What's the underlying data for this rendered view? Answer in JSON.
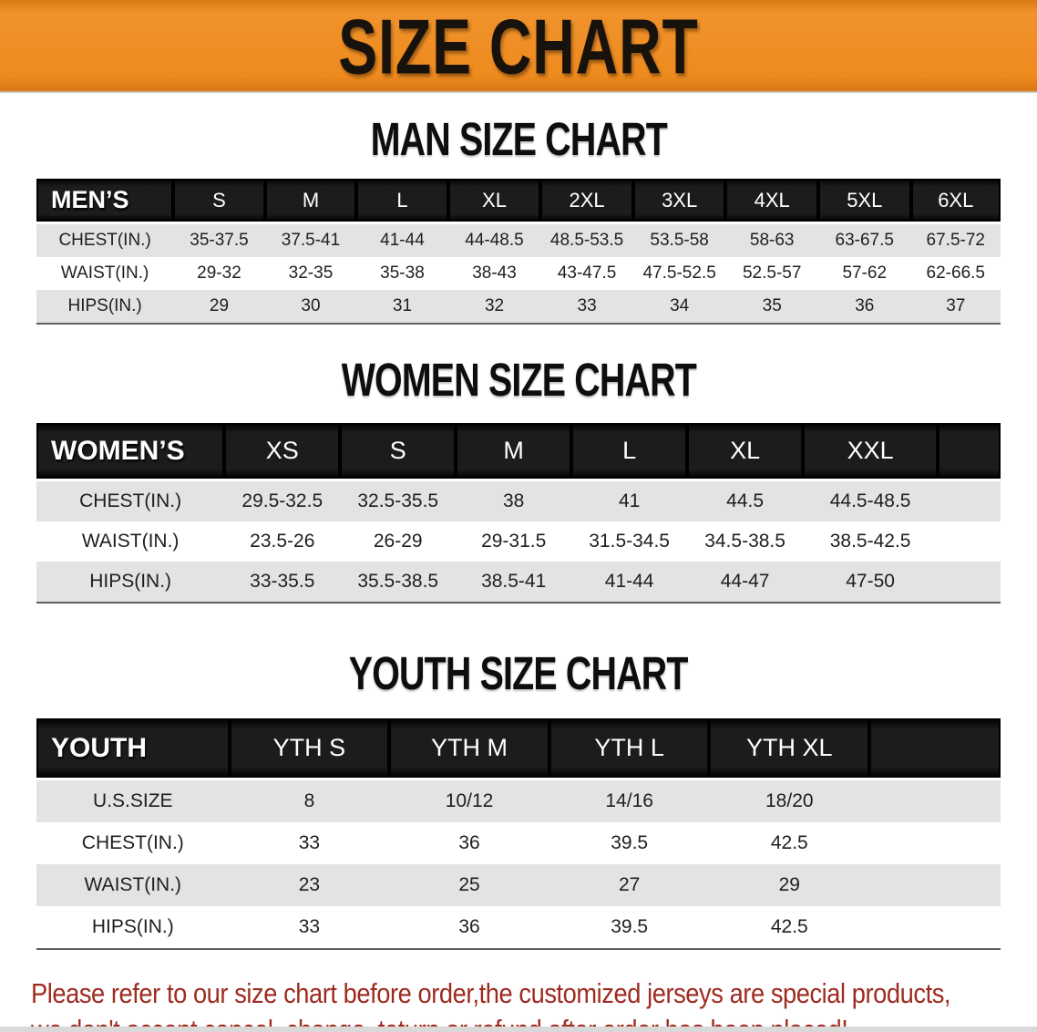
{
  "banner": {
    "title": "SIZE CHART"
  },
  "colors": {
    "banner_orange": "#ee8b1e",
    "header_black": "#1c1c1c",
    "row_gray": "#e3e3e3",
    "row_white": "#ffffff",
    "note_red": "#9f2b20"
  },
  "men": {
    "heading": "MAN SIZE CHART",
    "table": {
      "corner": "MEN’S",
      "sizes": [
        "S",
        "M",
        "L",
        "XL",
        "2XL",
        "3XL",
        "4XL",
        "5XL",
        "6XL"
      ],
      "rows": [
        {
          "label": "CHEST(IN.)",
          "values": [
            "35-37.5",
            "37.5-41",
            "41-44",
            "44-48.5",
            "48.5-53.5",
            "53.5-58",
            "58-63",
            "63-67.5",
            "67.5-72"
          ]
        },
        {
          "label": "WAIST(IN.)",
          "values": [
            "29-32",
            "32-35",
            "35-38",
            "38-43",
            "43-47.5",
            "47.5-52.5",
            "52.5-57",
            "57-62",
            "62-66.5"
          ]
        },
        {
          "label": "HIPS(IN.)",
          "values": [
            "29",
            "30",
            "31",
            "32",
            "33",
            "34",
            "35",
            "36",
            "37"
          ]
        }
      ]
    }
  },
  "women": {
    "heading": "WOMEN SIZE CHART",
    "table": {
      "corner": "WOMEN’S",
      "sizes": [
        "XS",
        "S",
        "M",
        "L",
        "XL",
        "XXL"
      ],
      "rows": [
        {
          "label": "CHEST(IN.)",
          "values": [
            "29.5-32.5",
            "32.5-35.5",
            "38",
            "41",
            "44.5",
            "44.5-48.5"
          ]
        },
        {
          "label": "WAIST(IN.)",
          "values": [
            "23.5-26",
            "26-29",
            "29-31.5",
            "31.5-34.5",
            "34.5-38.5",
            "38.5-42.5"
          ]
        },
        {
          "label": "HIPS(IN.)",
          "values": [
            "33-35.5",
            "35.5-38.5",
            "38.5-41",
            "41-44",
            "44-47",
            "47-50"
          ]
        }
      ]
    }
  },
  "youth": {
    "heading": "YOUTH SIZE CHART",
    "table": {
      "corner": "YOUTH",
      "sizes": [
        "YTH S",
        "YTH M",
        "YTH L",
        "YTH XL"
      ],
      "rows": [
        {
          "label": "U.S.SIZE",
          "values": [
            "8",
            "10/12",
            "14/16",
            "18/20"
          ]
        },
        {
          "label": "CHEST(IN.)",
          "values": [
            "33",
            "36",
            "39.5",
            "42.5"
          ]
        },
        {
          "label": "WAIST(IN.)",
          "values": [
            "23",
            "25",
            "27",
            "29"
          ]
        },
        {
          "label": "HIPS(IN.)",
          "values": [
            "33",
            "36",
            "39.5",
            "42.5"
          ]
        }
      ]
    }
  },
  "note": {
    "line1": "Please refer to our size chart before order,the customized jerseys are special products,",
    "line2": "we don't accept cancel, change, teturn or refund after order has been placed!"
  }
}
